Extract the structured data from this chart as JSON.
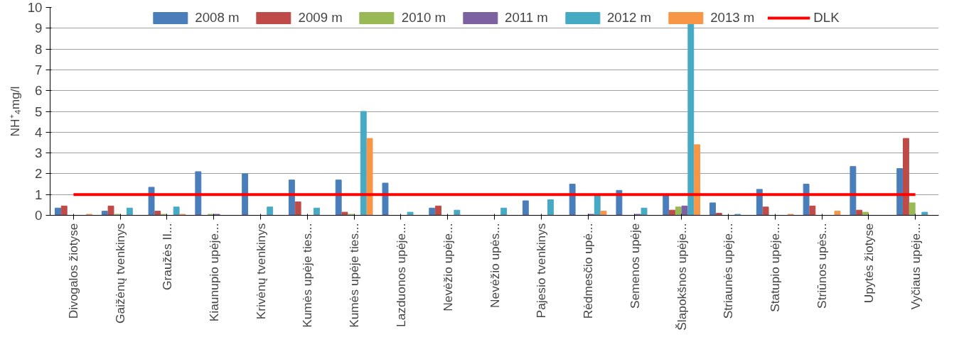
{
  "chart_data": {
    "type": "bar",
    "ylabel": "NH⁺₄mg/l",
    "categories": [
      "Divogalos žiotyse",
      "Gaižėnų tvenkinys",
      "Graužės II...",
      "Kiaunupio upėje...",
      "Krivėnų tvenkinys",
      "Kumės upėje ties...",
      "Kumės upėje ties...",
      "Lazduonos upėje...",
      "Nevėžio upėje...",
      "Nevėžio upės...",
      "Pajesio tvenkinys",
      "Rėdmesčio upė...",
      "Semenos upėje",
      "Šlapokšnos upėje...",
      "Striaunės upėje...",
      "Statupio upėje...",
      "Striūnos upės...",
      "Upytės žiotyse",
      "Vyčiaus upėje..."
    ],
    "series": [
      {
        "name": "2008 m",
        "color": "#4a7ebb",
        "values": [
          0.35,
          0.2,
          1.35,
          2.1,
          2.0,
          1.7,
          1.7,
          1.55,
          0.35,
          null,
          0.7,
          1.5,
          1.2,
          0.95,
          0.6,
          1.25,
          1.5,
          2.35,
          2.25
        ]
      },
      {
        "name": "2009 m",
        "color": "#be4b48",
        "values": [
          0.45,
          0.45,
          0.2,
          null,
          null,
          0.65,
          0.15,
          null,
          0.45,
          null,
          null,
          null,
          null,
          0.25,
          0.1,
          0.4,
          0.45,
          0.25,
          3.7
        ]
      },
      {
        "name": "2010 m",
        "color": "#98b954",
        "values": [
          null,
          0.05,
          0.05,
          0.05,
          null,
          null,
          0.05,
          null,
          null,
          null,
          null,
          null,
          null,
          0.4,
          null,
          null,
          null,
          0.15,
          0.6
        ]
      },
      {
        "name": "2011 m",
        "color": "#7d60a0",
        "values": [
          null,
          null,
          null,
          0.05,
          null,
          null,
          null,
          null,
          null,
          null,
          null,
          0.05,
          0.05,
          0.45,
          null,
          null,
          null,
          null,
          null
        ]
      },
      {
        "name": "2012 m",
        "color": "#46aac5",
        "values": [
          null,
          0.35,
          0.4,
          null,
          0.4,
          0.35,
          5.0,
          0.15,
          0.25,
          0.35,
          0.75,
          0.95,
          0.35,
          9.2,
          0.05,
          null,
          null,
          null,
          0.15
        ]
      },
      {
        "name": "2013 m",
        "color": "#f79646",
        "values": [
          0.05,
          null,
          0.05,
          null,
          null,
          null,
          3.7,
          null,
          null,
          null,
          null,
          0.2,
          null,
          3.4,
          null,
          0.05,
          0.2,
          null,
          null
        ]
      },
      {
        "name": "DLK",
        "type": "line",
        "color": "#ff0000",
        "values": [
          1,
          1,
          1,
          1,
          1,
          1,
          1,
          1,
          1,
          1,
          1,
          1,
          1,
          1,
          1,
          1,
          1,
          1,
          1
        ]
      }
    ],
    "ylim": [
      0,
      10
    ],
    "yticks": [
      0,
      1,
      2,
      3,
      4,
      5,
      6,
      7,
      8,
      9,
      10
    ],
    "grid": "y",
    "legend": "top"
  }
}
